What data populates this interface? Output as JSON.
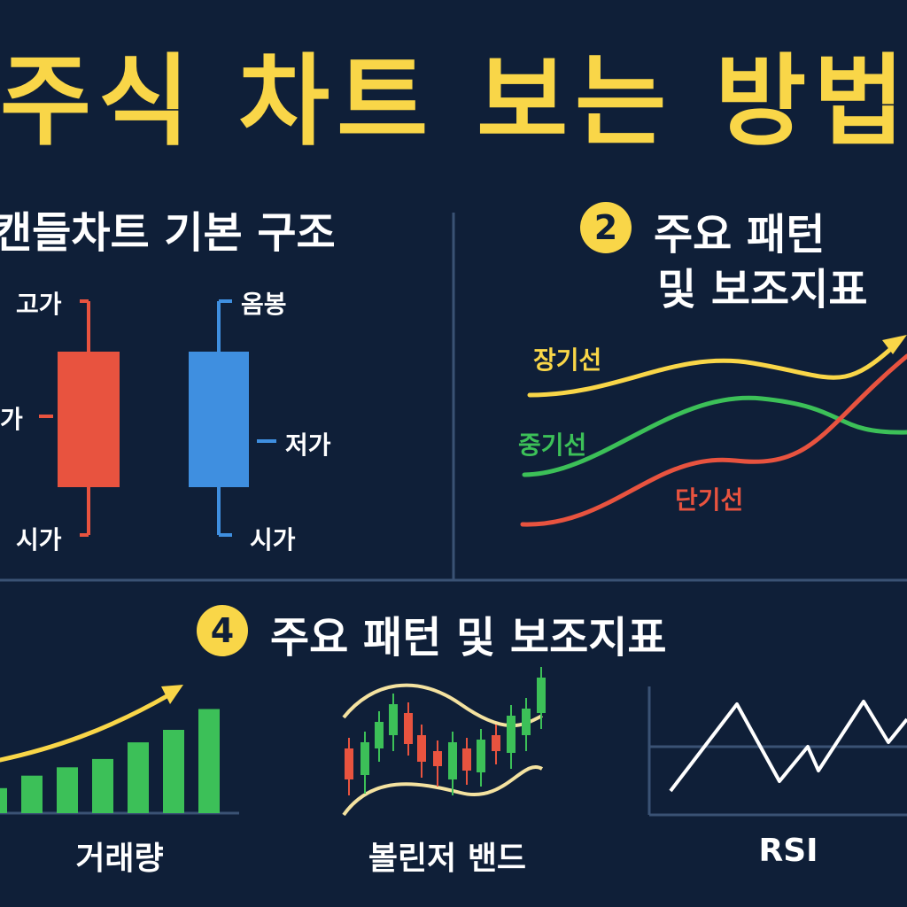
{
  "title": "주식 차트 보는 방법",
  "sections": {
    "candle": {
      "title": "캔들차트 기본 구조",
      "labels": {
        "high": "고가",
        "close_left": "가",
        "open_left": "시가",
        "body_right": "옴봉",
        "low_right": "저가",
        "open_right": "시가"
      },
      "colors": {
        "up": "#e8533f",
        "down": "#3f8fe0"
      }
    },
    "patterns": {
      "badge": "2",
      "title_line1": "주요 패턴",
      "title_line2": "및 보조지표",
      "lines": {
        "long": {
          "label": "장기선",
          "color": "#f9d648"
        },
        "mid": {
          "label": "중기선",
          "color": "#3cc058"
        },
        "short": {
          "label": "단기선",
          "color": "#e8533f"
        }
      }
    },
    "indicators": {
      "badge": "4",
      "title": "주요 패턴 및 보조지표",
      "volume": {
        "caption": "거래량",
        "values": [
          3,
          4.5,
          5.5,
          6.5,
          8.5,
          10,
          12.5
        ]
      },
      "bollinger": {
        "caption": "볼린저 밴드"
      },
      "rsi": {
        "caption": "RSI"
      }
    }
  }
}
